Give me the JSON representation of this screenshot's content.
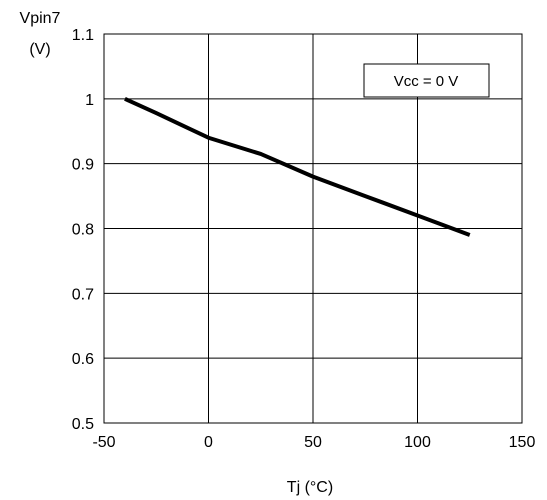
{
  "chart_data": {
    "type": "line",
    "title": "",
    "ylabel_line1": "Vpin7",
    "ylabel_line2": "(V)",
    "xlabel": "Tj  (°C)",
    "xlim": [
      -50,
      150
    ],
    "ylim": [
      0.5,
      1.1
    ],
    "xticks": [
      -50,
      0,
      50,
      100,
      150
    ],
    "yticks": [
      0.5,
      0.6,
      0.7,
      0.8,
      0.9,
      1,
      1.1
    ],
    "xtick_labels": [
      "-50",
      "0",
      "50",
      "100",
      "150"
    ],
    "ytick_labels": [
      "0.5",
      "0.6",
      "0.7",
      "0.8",
      "0.9",
      "1",
      "1.1"
    ],
    "grid": true,
    "annotation": "Vcc = 0 V",
    "series": [
      {
        "x": [
          -40,
          -25,
          0,
          25,
          50,
          75,
          100,
          125
        ],
        "y": [
          1.0,
          0.978,
          0.94,
          0.915,
          0.88,
          0.85,
          0.82,
          0.79
        ]
      }
    ],
    "line_color": "#000000"
  }
}
